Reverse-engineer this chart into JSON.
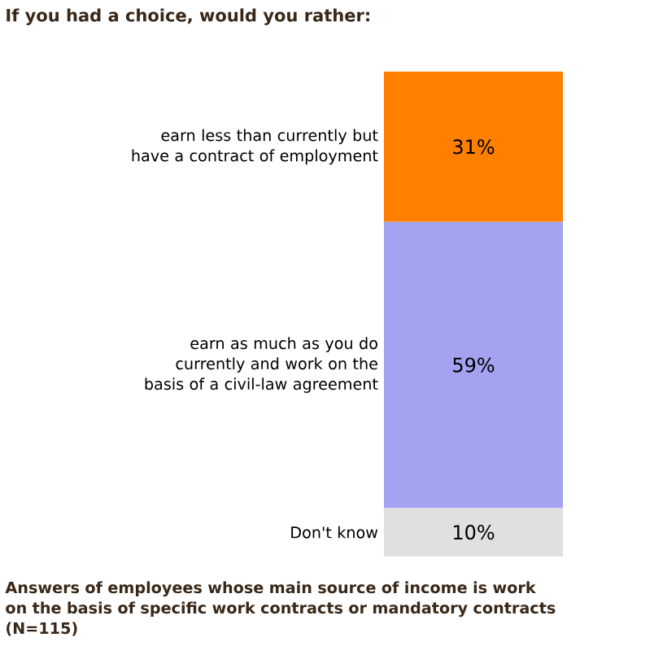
{
  "chart_data": {
    "type": "bar",
    "stacked": true,
    "title": "If you had a choice, would you rather:",
    "categories": [
      null
    ],
    "series": [
      {
        "name": "Don't know",
        "color": "#e0e0e0",
        "values": [
          10
        ],
        "value_labels": [
          "10%"
        ]
      },
      {
        "name": "earn as much as you do currently and work on the basis of a civil-law agreement",
        "color": "#a3a3f2",
        "values": [
          59
        ],
        "value_labels": [
          "59%"
        ]
      },
      {
        "name": "earn less than currently but have a contract of employment",
        "color": "#ff8000",
        "values": [
          31
        ],
        "value_labels": [
          "31%"
        ]
      }
    ],
    "annotations": [
      "Answers of employees whose main source of income is work on the basis of specific work contracts or mandatory contracts (N=115)"
    ]
  }
}
